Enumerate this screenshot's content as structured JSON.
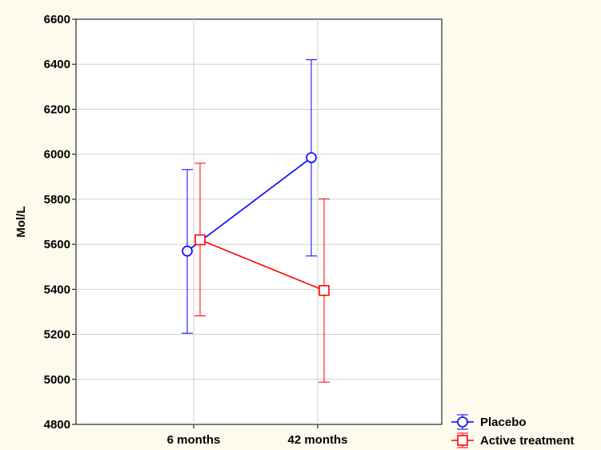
{
  "chart_data": {
    "type": "line",
    "title": "",
    "xlabel": "",
    "ylabel": "Mol/L",
    "categories": [
      "6 months",
      "42 months"
    ],
    "ylim": [
      4800,
      6600
    ],
    "yticks": [
      4800,
      5000,
      5200,
      5400,
      5600,
      5800,
      6000,
      6200,
      6400,
      6600
    ],
    "grid": true,
    "legend_position": "bottom-right",
    "series": [
      {
        "name": "Placebo",
        "color": "#0000ff",
        "marker": "circle",
        "values": [
          5570,
          5985
        ],
        "error_low": [
          5205,
          5548
        ],
        "error_high": [
          5932,
          6420
        ]
      },
      {
        "name": "Active treatment",
        "color": "#ff0000",
        "marker": "square",
        "values": [
          5620,
          5395
        ],
        "error_low": [
          5282,
          4988
        ],
        "error_high": [
          5960,
          5802
        ]
      }
    ]
  }
}
